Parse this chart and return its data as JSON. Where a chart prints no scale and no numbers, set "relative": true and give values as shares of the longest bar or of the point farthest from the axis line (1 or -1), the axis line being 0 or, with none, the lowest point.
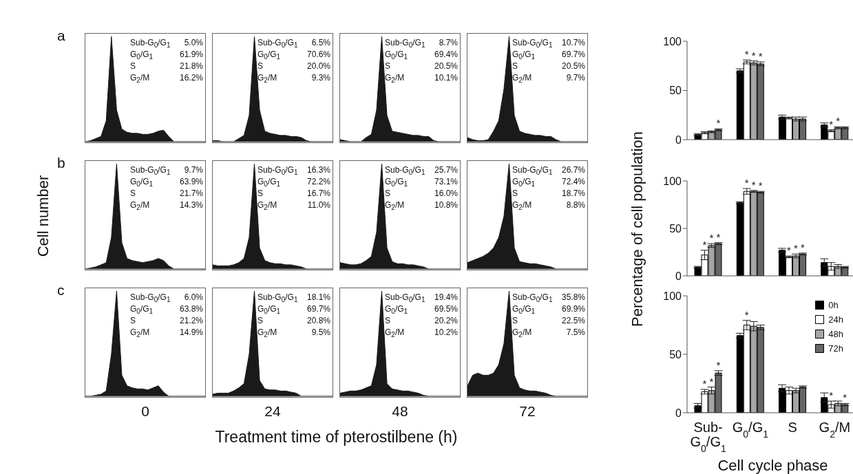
{
  "chart_data": [
    {
      "type": "area",
      "relative": true,
      "title": "a",
      "color": "#1a1a1a",
      "tick_labels": false,
      "categories": [
        null,
        null,
        null,
        null,
        null,
        null,
        null,
        null,
        null,
        null,
        null,
        null,
        null,
        null,
        null,
        null,
        null,
        null,
        null,
        null,
        null,
        null,
        null,
        null
      ],
      "values": [
        0,
        0.01,
        0.03,
        0.05,
        0.2,
        1,
        0.3,
        0.12,
        0.09,
        0.08,
        0.08,
        0.07,
        0.07,
        0.08,
        0.1,
        0.11,
        0.05,
        0,
        0,
        0,
        0,
        0,
        0,
        0
      ],
      "annotations": [
        "Sub-G$_{0}$/G$_{1}$",
        "5.0%",
        "G$_{0}$/G$_{1}$",
        "61.9%",
        "S",
        "21.8%",
        "G$_{2}$/M",
        "16.2%"
      ]
    },
    {
      "type": "area",
      "relative": true,
      "color": "#1a1a1a",
      "tick_labels": false,
      "categories": [
        null,
        null,
        null,
        null,
        null,
        null,
        null,
        null,
        null,
        null,
        null,
        null,
        null,
        null,
        null,
        null,
        null,
        null,
        null,
        null,
        null,
        null,
        null,
        null
      ],
      "values": [
        0.01,
        0.01,
        0,
        0,
        0,
        0.03,
        0.06,
        0.25,
        1,
        0.3,
        0.1,
        0.08,
        0.07,
        0.06,
        0.06,
        0.05,
        0.05,
        0.04,
        0.01,
        0,
        0,
        0,
        0,
        0
      ],
      "annotations": [
        "Sub-G$_{0}$/G$_{1}$",
        "6.5%",
        "G$_{0}$/G$_{1}$",
        "70.6%",
        "S",
        "20.0%",
        "G$_{2}$/M",
        "9.3%"
      ]
    },
    {
      "type": "area",
      "relative": true,
      "color": "#1a1a1a",
      "tick_labels": false,
      "categories": [
        null,
        null,
        null,
        null,
        null,
        null,
        null,
        null,
        null,
        null,
        null,
        null,
        null,
        null,
        null,
        null,
        null,
        null,
        null,
        null,
        null,
        null,
        null,
        null
      ],
      "values": [
        0.02,
        0.01,
        0,
        0,
        0,
        0.04,
        0.07,
        0.3,
        1,
        0.25,
        0.1,
        0.09,
        0.08,
        0.07,
        0.06,
        0.06,
        0.05,
        0.05,
        0.01,
        0,
        0,
        0,
        0,
        0
      ],
      "annotations": [
        "Sub-G$_{0}$/G$_{1}$",
        "8.7%",
        "G$_{0}$/G$_{1}$",
        "69.4%",
        "S",
        "20.5%",
        "G$_{2}$/M",
        "10.1%"
      ]
    },
    {
      "type": "area",
      "relative": true,
      "color": "#1a1a1a",
      "tick_labels": false,
      "categories": [
        null,
        null,
        null,
        null,
        null,
        null,
        null,
        null,
        null,
        null,
        null,
        null,
        null,
        null,
        null,
        null,
        null,
        null,
        null,
        null,
        null,
        null,
        null,
        null
      ],
      "values": [
        0.04,
        0.02,
        0.01,
        0.01,
        0.02,
        0.1,
        0.2,
        0.5,
        1,
        0.25,
        0.1,
        0.08,
        0.07,
        0.06,
        0.06,
        0.05,
        0.05,
        0.02,
        0,
        0,
        0,
        0,
        0,
        0
      ],
      "annotations": [
        "Sub-G$_{0}$/G$_{1}$",
        "10.7%",
        "G$_{0}$/G$_{1}$",
        "69.7%",
        "S",
        "20.5%",
        "G$_{2}$/M",
        "9.7%"
      ]
    },
    {
      "type": "area",
      "relative": true,
      "title": "b",
      "ylabel": "Cell number",
      "color": "#1a1a1a",
      "tick_labels": false,
      "categories": [
        null,
        null,
        null,
        null,
        null,
        null,
        null,
        null,
        null,
        null,
        null,
        null,
        null,
        null,
        null,
        null,
        null,
        null,
        null,
        null,
        null,
        null,
        null,
        null
      ],
      "values": [
        0,
        0.01,
        0.02,
        0.04,
        0.06,
        0.3,
        1,
        0.25,
        0.1,
        0.08,
        0.07,
        0.06,
        0.07,
        0.08,
        0.1,
        0.08,
        0.03,
        0,
        0,
        0,
        0,
        0,
        0,
        0
      ],
      "annotations": [
        "Sub-G$_{0}$/G$_{1}$",
        "9.7%",
        "G$_{0}$/G$_{1}$",
        "63.9%",
        "S",
        "21.7%",
        "G$_{2}$/M",
        "14.3%"
      ]
    },
    {
      "type": "area",
      "relative": true,
      "color": "#1a1a1a",
      "tick_labels": false,
      "categories": [
        null,
        null,
        null,
        null,
        null,
        null,
        null,
        null,
        null,
        null,
        null,
        null,
        null,
        null,
        null,
        null,
        null,
        null,
        null,
        null,
        null,
        null,
        null,
        null
      ],
      "values": [
        0.04,
        0.03,
        0.03,
        0.03,
        0.04,
        0.06,
        0.1,
        0.3,
        1,
        0.2,
        0.08,
        0.06,
        0.05,
        0.05,
        0.04,
        0.04,
        0.03,
        0.02,
        0,
        0,
        0,
        0,
        0,
        0
      ],
      "annotations": [
        "Sub-G$_{0}$/G$_{1}$",
        "16.3%",
        "G$_{0}$/G$_{1}$",
        "72.2%",
        "S",
        "16.7%",
        "G$_{2}$/M",
        "11.0%"
      ]
    },
    {
      "type": "area",
      "relative": true,
      "color": "#1a1a1a",
      "tick_labels": false,
      "categories": [
        null,
        null,
        null,
        null,
        null,
        null,
        null,
        null,
        null,
        null,
        null,
        null,
        null,
        null,
        null,
        null,
        null,
        null,
        null,
        null,
        null,
        null,
        null,
        null
      ],
      "values": [
        0.06,
        0.05,
        0.04,
        0.04,
        0.05,
        0.08,
        0.12,
        0.35,
        1,
        0.2,
        0.07,
        0.05,
        0.05,
        0.04,
        0.04,
        0.03,
        0.02,
        0,
        0,
        0,
        0,
        0,
        0,
        0
      ],
      "annotations": [
        "Sub-G$_{0}$/G$_{1}$",
        "25.7%",
        "G$_{0}$/G$_{1}$",
        "73.1%",
        "S",
        "16.0%",
        "G$_{2}$/M",
        "10.8%"
      ]
    },
    {
      "type": "area",
      "relative": true,
      "color": "#1a1a1a",
      "tick_labels": false,
      "categories": [
        null,
        null,
        null,
        null,
        null,
        null,
        null,
        null,
        null,
        null,
        null,
        null,
        null,
        null,
        null,
        null,
        null,
        null,
        null,
        null,
        null,
        null,
        null,
        null
      ],
      "values": [
        0.06,
        0.08,
        0.1,
        0.12,
        0.15,
        0.2,
        0.3,
        0.5,
        1,
        0.2,
        0.07,
        0.06,
        0.05,
        0.05,
        0.04,
        0.03,
        0.02,
        0,
        0,
        0,
        0,
        0,
        0,
        0
      ],
      "annotations": [
        "Sub-G$_{0}$/G$_{1}$",
        "26.7%",
        "G$_{0}$/G$_{1}$",
        "72.4%",
        "S",
        "18.7%",
        "G$_{2}$/M",
        "8.8%"
      ]
    },
    {
      "type": "area",
      "relative": true,
      "title": "c",
      "xlabel": "0",
      "color": "#1a1a1a",
      "tick_labels": false,
      "categories": [
        null,
        null,
        null,
        null,
        null,
        null,
        null,
        null,
        null,
        null,
        null,
        null,
        null,
        null,
        null,
        null,
        null,
        null,
        null,
        null,
        null,
        null,
        null,
        null
      ],
      "values": [
        0,
        0,
        0.01,
        0.02,
        0.05,
        0.4,
        1,
        0.2,
        0.1,
        0.08,
        0.07,
        0.07,
        0.06,
        0.08,
        0.1,
        0.04,
        0,
        0,
        0,
        0,
        0,
        0,
        0,
        0
      ],
      "annotations": [
        "Sub-G$_{0}$/G$_{1}$",
        "6.0%",
        "G$_{0}$/G$_{1}$",
        "63.8%",
        "S",
        "21.2%",
        "G$_{2}$/M",
        "14.9%",
        "Treatment time of  pterostilbene (h)"
      ]
    },
    {
      "type": "area",
      "relative": true,
      "xlabel": "24",
      "color": "#1a1a1a",
      "tick_labels": false,
      "categories": [
        null,
        null,
        null,
        null,
        null,
        null,
        null,
        null,
        null,
        null,
        null,
        null,
        null,
        null,
        null,
        null,
        null,
        null,
        null,
        null,
        null,
        null,
        null,
        null
      ],
      "values": [
        0.02,
        0.03,
        0.03,
        0.03,
        0.05,
        0.08,
        0.12,
        0.4,
        1,
        0.15,
        0.07,
        0.06,
        0.06,
        0.05,
        0.05,
        0.04,
        0.03,
        0,
        0,
        0,
        0,
        0,
        0,
        0
      ],
      "annotations": [
        "Sub-G$_{0}$/G$_{1}$",
        "18.1%",
        "G$_{0}$/G$_{1}$",
        "69.7%",
        "S",
        "20.8%",
        "G$_{2}$/M",
        "9.5%"
      ]
    },
    {
      "type": "area",
      "relative": true,
      "xlabel": "48",
      "color": "#1a1a1a",
      "tick_labels": false,
      "categories": [
        null,
        null,
        null,
        null,
        null,
        null,
        null,
        null,
        null,
        null,
        null,
        null,
        null,
        null,
        null,
        null,
        null,
        null,
        null,
        null,
        null,
        null,
        null,
        null
      ],
      "values": [
        0.03,
        0.04,
        0.05,
        0.05,
        0.06,
        0.08,
        0.1,
        0.3,
        1,
        0.12,
        0.07,
        0.06,
        0.05,
        0.05,
        0.04,
        0.03,
        0.01,
        0,
        0,
        0,
        0,
        0,
        0,
        0
      ],
      "annotations": [
        "Sub-G$_{0}$/G$_{1}$",
        "19.4%",
        "G$_{0}$/G$_{1}$",
        "69.5%",
        "S",
        "20.2%",
        "G$_{2}$/M",
        "10.2%"
      ]
    },
    {
      "type": "area",
      "relative": true,
      "xlabel": "72",
      "color": "#1a1a1a",
      "tick_labels": false,
      "categories": [
        null,
        null,
        null,
        null,
        null,
        null,
        null,
        null,
        null,
        null,
        null,
        null,
        null,
        null,
        null,
        null,
        null,
        null,
        null,
        null,
        null,
        null,
        null,
        null
      ],
      "values": [
        0.1,
        0.2,
        0.22,
        0.2,
        0.2,
        0.22,
        0.3,
        0.5,
        1,
        0.2,
        0.08,
        0.06,
        0.05,
        0.05,
        0.04,
        0.03,
        0.01,
        0,
        0,
        0,
        0,
        0,
        0,
        0
      ],
      "annotations": [
        "Sub-G$_{0}$/G$_{1}$",
        "35.8%",
        "G$_{0}$/G$_{1}$",
        "69.9%",
        "S",
        "22.5%",
        "G$_{2}$/M",
        "7.5%"
      ]
    },
    {
      "type": "bar",
      "categories": [
        null,
        null,
        null,
        null
      ],
      "ylim": [
        0,
        100
      ],
      "yticks": [
        0,
        50,
        100
      ],
      "tick_labels": "y",
      "series": [
        {
          "color": "#000000",
          "values": [
            5,
            70,
            23,
            15
          ],
          "errors": [
            1,
            2,
            2,
            2
          ]
        },
        {
          "color": "#ffffff",
          "values": [
            7,
            79,
            22,
            9
          ],
          "errors": [
            1,
            2,
            1,
            1
          ],
          "value_labels": [
            null,
            "*",
            null,
            "*"
          ]
        },
        {
          "color": "#a6a6a6",
          "values": [
            8,
            78,
            21,
            12
          ],
          "errors": [
            1,
            2,
            2,
            1
          ],
          "value_labels": [
            null,
            "*",
            null,
            "*"
          ]
        },
        {
          "color": "#666666",
          "values": [
            10,
            77,
            21,
            12
          ],
          "errors": [
            1,
            2,
            2,
            1
          ],
          "value_labels": [
            "*",
            "*",
            null,
            null
          ]
        }
      ]
    },
    {
      "type": "bar",
      "categories": [
        null,
        null,
        null,
        null
      ],
      "ylim": [
        0,
        100
      ],
      "yticks": [
        0,
        50,
        100
      ],
      "tick_labels": "y",
      "ylabel": "Percentage of cell population",
      "series": [
        {
          "color": "#000000",
          "values": [
            9,
            77,
            27,
            14
          ],
          "errors": [
            1,
            1,
            2,
            4
          ]
        },
        {
          "color": "#ffffff",
          "values": [
            22,
            89,
            20,
            10
          ],
          "errors": [
            5,
            3,
            1,
            4
          ],
          "value_labels": [
            "*",
            "*",
            "*",
            null
          ]
        },
        {
          "color": "#a6a6a6",
          "values": [
            32,
            89,
            21,
            10
          ],
          "errors": [
            2,
            1,
            2,
            2
          ],
          "value_labels": [
            "*",
            "*",
            "*",
            null
          ]
        },
        {
          "color": "#666666",
          "values": [
            34,
            88,
            23,
            9
          ],
          "errors": [
            1,
            1,
            1,
            1
          ],
          "value_labels": [
            "*",
            "*",
            "*",
            null
          ]
        }
      ]
    },
    {
      "type": "bar",
      "categories": [
        "Sub-G$_{0}$/G$_{1}$",
        "G$_{0}$/G$_{1}$",
        "S",
        "G$_{2}$/M"
      ],
      "ylim": [
        0,
        100
      ],
      "yticks": [
        0,
        50,
        100
      ],
      "xlabel": "Cell cycle phase",
      "legend": "top right",
      "series": [
        {
          "name": "0h",
          "color": "#000000",
          "values": [
            6,
            66,
            21,
            13
          ],
          "errors": [
            2,
            2,
            3,
            4
          ]
        },
        {
          "name": "24h",
          "color": "#ffffff",
          "values": [
            18,
            75,
            19,
            7
          ],
          "errors": [
            2,
            4,
            3,
            3
          ],
          "value_labels": [
            "*",
            "*",
            null,
            "*"
          ]
        },
        {
          "name": "48h",
          "color": "#a6a6a6",
          "values": [
            19,
            74,
            19,
            8
          ],
          "errors": [
            3,
            4,
            2,
            2
          ],
          "value_labels": [
            "*",
            null,
            null,
            null
          ]
        },
        {
          "name": "72h",
          "color": "#666666",
          "values": [
            34,
            73,
            22,
            7
          ],
          "errors": [
            2,
            2,
            1,
            1
          ],
          "value_labels": [
            "*",
            null,
            null,
            "*"
          ]
        }
      ]
    }
  ]
}
